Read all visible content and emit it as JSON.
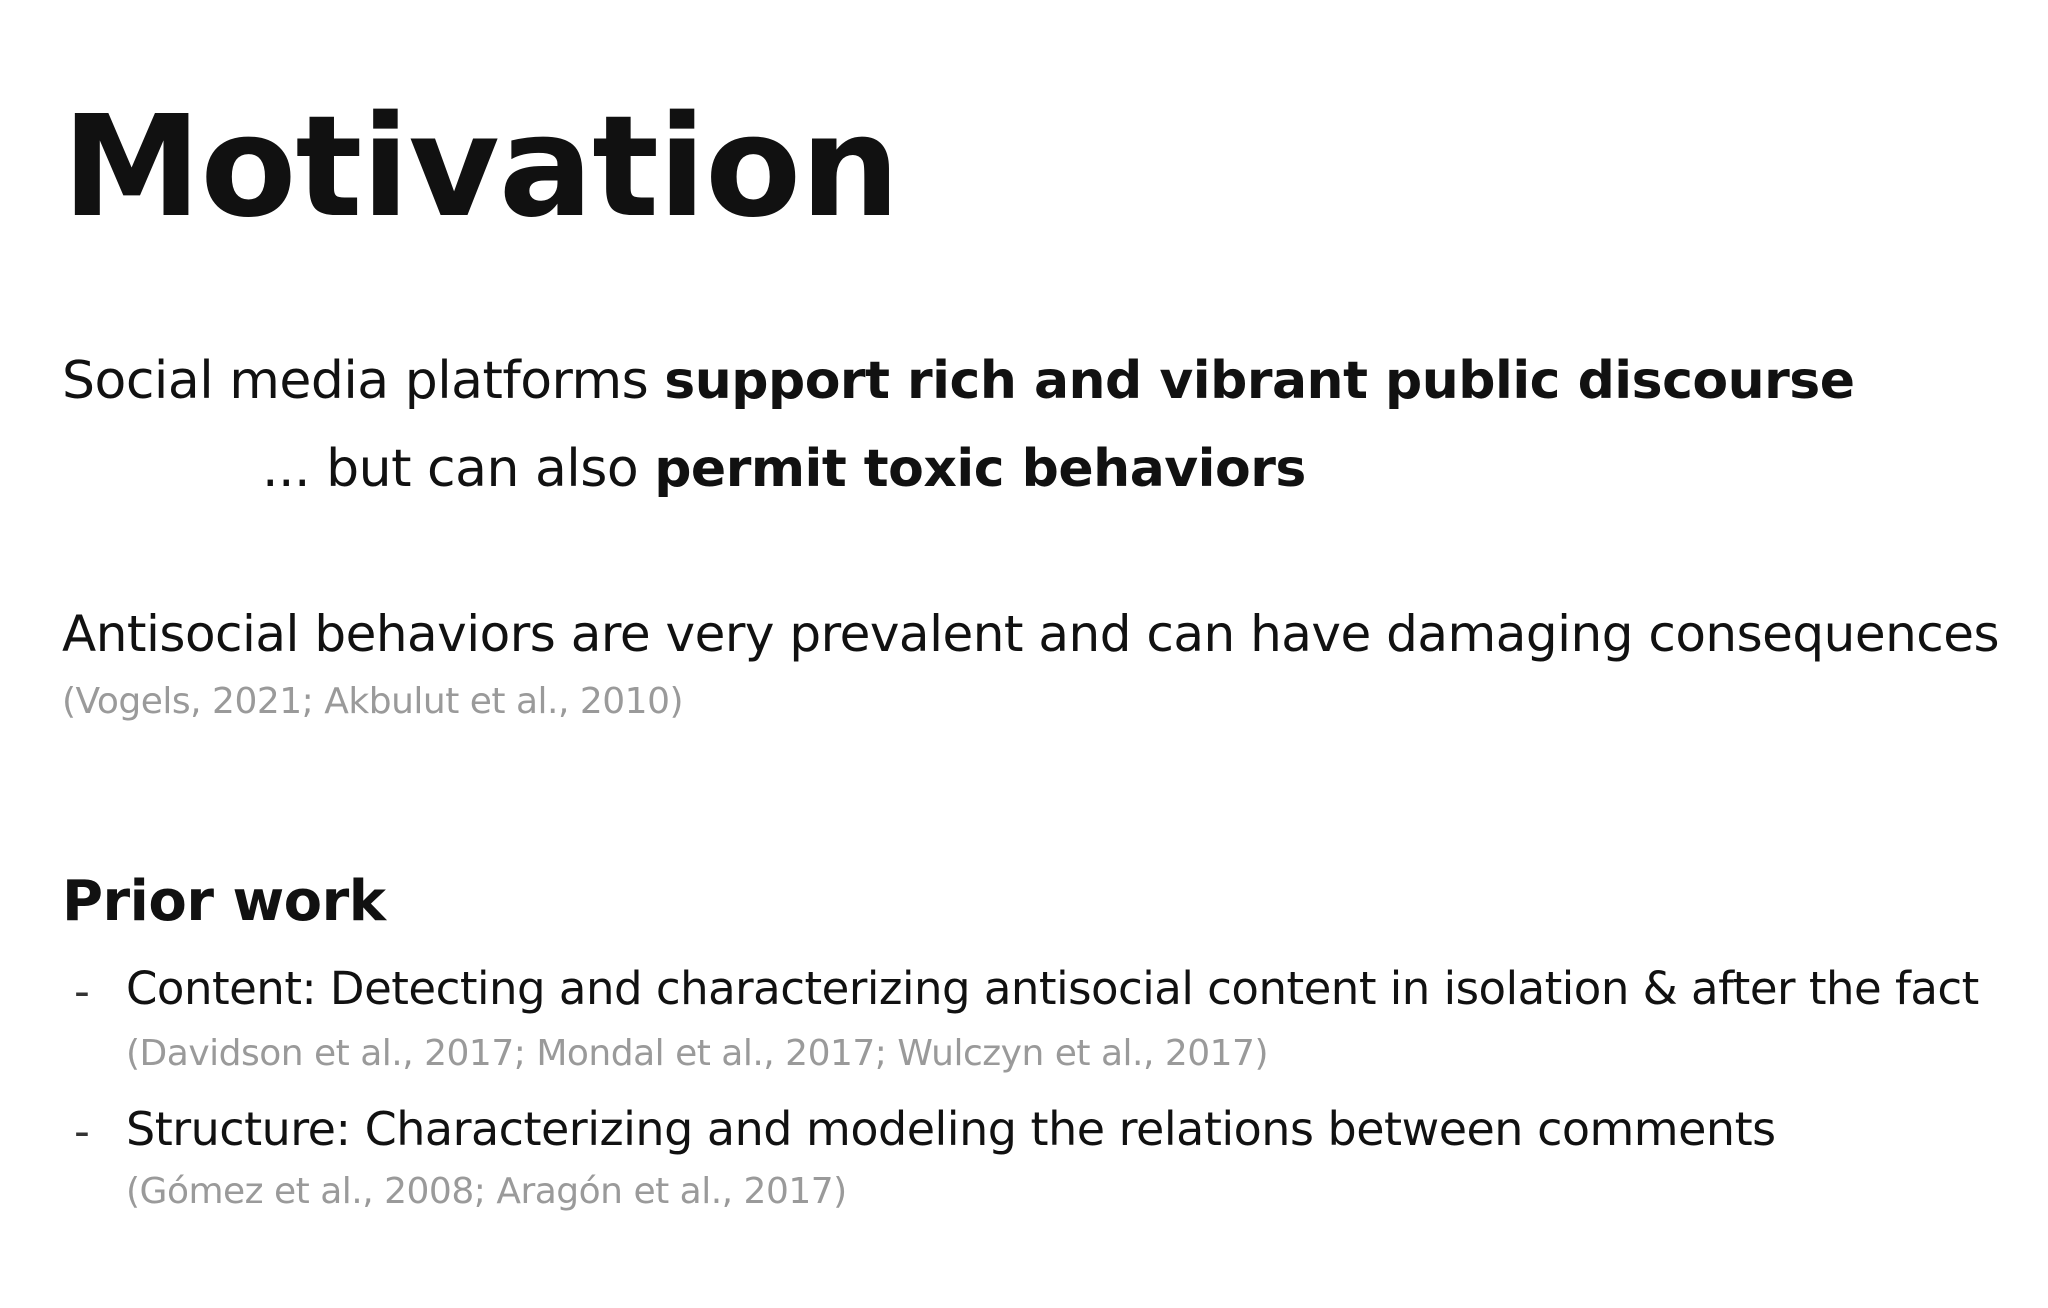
{
  "slide": {
    "title": "Motivation",
    "intro": {
      "line1_plain": "Social media platforms ",
      "line1_bold": "support rich and vibrant public discourse",
      "line2_plain": "... but can also ",
      "line2_bold": "permit toxic behaviors"
    },
    "antisocial": {
      "text": "Antisocial behaviors are very prevalent and can have damaging consequences",
      "citation": "(Vogels, 2021; Akbulut et al., 2010)"
    },
    "prior_work": {
      "heading": "Prior work",
      "items": [
        {
          "marker": "-",
          "text": "Content: Detecting and characterizing antisocial content in isolation & after the fact",
          "citation": "(Davidson et al., 2017; Mondal et al., 2017; Wulczyn et al., 2017)"
        },
        {
          "marker": "-",
          "text": "Structure: Characterizing and modeling the relations between comments",
          "citation": "(Gómez et al., 2008; Aragón et al., 2017)"
        }
      ]
    }
  }
}
